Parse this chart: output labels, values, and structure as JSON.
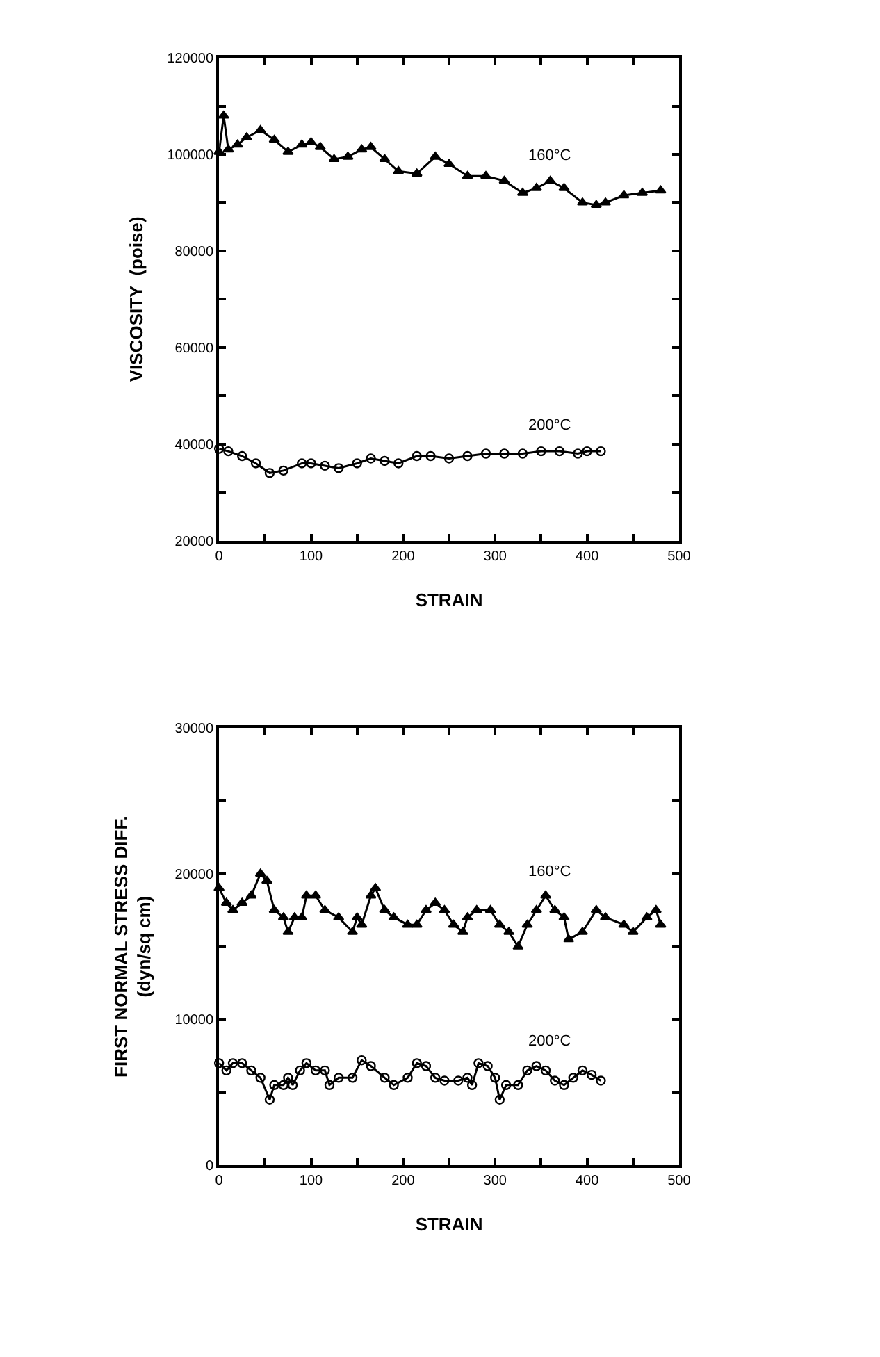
{
  "chart_data": [
    {
      "type": "line",
      "xlabel": "STRAIN",
      "ylabel": "VISCOSITY  (poise)",
      "xlim": [
        0,
        500
      ],
      "ylim": [
        20000,
        120000
      ],
      "xticks": [
        0,
        {
          "value": 50,
          "label": null
        },
        100,
        {
          "value": 150,
          "label": null
        },
        200,
        {
          "value": 250,
          "label": null
        },
        300,
        {
          "value": 350,
          "label": null
        },
        400,
        {
          "value": 450,
          "label": null
        },
        500
      ],
      "yticks": [
        20000,
        {
          "value": 30000,
          "label": null
        },
        40000,
        {
          "value": 50000,
          "label": null
        },
        60000,
        {
          "value": 70000,
          "label": null
        },
        80000,
        {
          "value": 90000,
          "label": null
        },
        100000,
        {
          "value": 110000,
          "label": null
        },
        120000
      ],
      "grid": false,
      "legend": false,
      "line_style": "solid",
      "series": [
        {
          "name": "160°C",
          "color": "#000000",
          "marker": "triangle",
          "x": [
            0,
            5,
            10,
            20,
            30,
            45,
            60,
            75,
            90,
            100,
            110,
            125,
            140,
            155,
            165,
            180,
            195,
            215,
            235,
            250,
            270,
            290,
            310,
            330,
            345,
            360,
            375,
            395,
            410,
            420,
            440,
            460,
            480
          ],
          "values": [
            100500,
            108000,
            101000,
            102000,
            103500,
            105000,
            103000,
            100500,
            102000,
            102500,
            101500,
            99000,
            99500,
            101000,
            101500,
            99000,
            96500,
            96000,
            99500,
            98000,
            95500,
            95500,
            94500,
            92000,
            93000,
            94500,
            93000,
            90000,
            89500,
            90000,
            91500,
            92000,
            92500
          ]
        },
        {
          "name": "200°C",
          "color": "#000000",
          "marker": "circle-open",
          "x": [
            0,
            10,
            25,
            40,
            55,
            70,
            90,
            100,
            115,
            130,
            150,
            165,
            180,
            195,
            215,
            230,
            250,
            270,
            290,
            310,
            330,
            350,
            370,
            390,
            400,
            415
          ],
          "values": [
            39000,
            38500,
            37500,
            36000,
            34000,
            34500,
            36000,
            36000,
            35500,
            35000,
            36000,
            37000,
            36500,
            36000,
            37500,
            37500,
            37000,
            37500,
            38000,
            38000,
            38000,
            38500,
            38500,
            38000,
            38500,
            38500
          ]
        }
      ]
    },
    {
      "type": "line",
      "xlabel": "STRAIN",
      "ylabel": "FIRST NORMAL STRESS DIFF.\n(dyn/sq cm)",
      "xlim": [
        0,
        500
      ],
      "ylim": [
        0,
        30000
      ],
      "xticks": [
        0,
        {
          "value": 50,
          "label": null
        },
        100,
        {
          "value": 150,
          "label": null
        },
        200,
        {
          "value": 250,
          "label": null
        },
        300,
        {
          "value": 350,
          "label": null
        },
        400,
        {
          "value": 450,
          "label": null
        },
        500
      ],
      "yticks": [
        0,
        {
          "value": 5000,
          "label": null
        },
        10000,
        {
          "value": 15000,
          "label": null
        },
        20000,
        {
          "value": 25000,
          "label": null
        },
        30000
      ],
      "grid": false,
      "legend": false,
      "line_style": "solid",
      "series": [
        {
          "name": "160°C",
          "color": "#000000",
          "marker": "triangle",
          "x": [
            0,
            8,
            15,
            25,
            35,
            45,
            52,
            60,
            70,
            75,
            82,
            90,
            95,
            105,
            115,
            130,
            145,
            150,
            155,
            165,
            170,
            180,
            190,
            205,
            215,
            225,
            235,
            245,
            255,
            265,
            270,
            280,
            295,
            305,
            315,
            325,
            335,
            345,
            355,
            365,
            375,
            380,
            395,
            410,
            420,
            440,
            450,
            465,
            475,
            480
          ],
          "values": [
            19000,
            18000,
            17500,
            18000,
            18500,
            20000,
            19500,
            17500,
            17000,
            16000,
            17000,
            17000,
            18500,
            18500,
            17500,
            17000,
            16000,
            17000,
            16500,
            18500,
            19000,
            17500,
            17000,
            16500,
            16500,
            17500,
            18000,
            17500,
            16500,
            16000,
            17000,
            17500,
            17500,
            16500,
            16000,
            15000,
            16500,
            17500,
            18500,
            17500,
            17000,
            15500,
            16000,
            17500,
            17000,
            16500,
            16000,
            17000,
            17500,
            16500
          ]
        },
        {
          "name": "200°C",
          "color": "#000000",
          "marker": "circle-open",
          "x": [
            0,
            8,
            15,
            25,
            35,
            45,
            55,
            60,
            70,
            75,
            80,
            88,
            95,
            105,
            115,
            120,
            130,
            145,
            155,
            165,
            180,
            190,
            205,
            215,
            225,
            235,
            245,
            260,
            270,
            275,
            282,
            292,
            300,
            305,
            312,
            325,
            335,
            345,
            355,
            365,
            375,
            385,
            395,
            405,
            415
          ],
          "values": [
            7000,
            6500,
            7000,
            7000,
            6500,
            6000,
            4500,
            5500,
            5500,
            6000,
            5500,
            6500,
            7000,
            6500,
            6500,
            5500,
            6000,
            6000,
            7200,
            6800,
            6000,
            5500,
            6000,
            7000,
            6800,
            6000,
            5800,
            5800,
            6000,
            5500,
            7000,
            6800,
            6000,
            4500,
            5500,
            5500,
            6500,
            6800,
            6500,
            5800,
            5500,
            6000,
            6500,
            6200,
            5800
          ]
        }
      ]
    }
  ]
}
